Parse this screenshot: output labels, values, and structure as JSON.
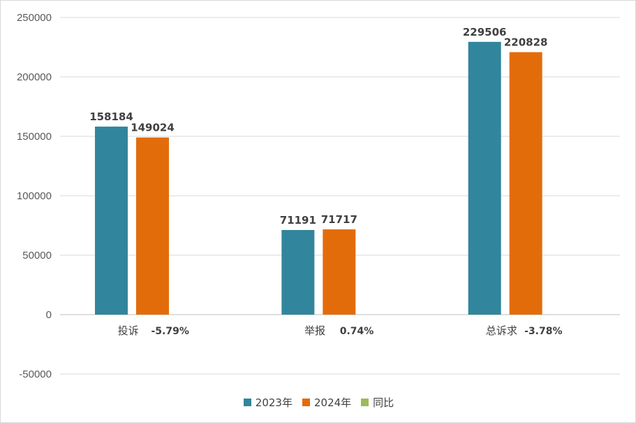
{
  "chart_data": {
    "type": "bar",
    "categories": [
      "投诉",
      "举报",
      "总诉求"
    ],
    "category_changes": [
      "-5.79%",
      "0.74%",
      "-3.78%"
    ],
    "series": [
      {
        "name": "2023年",
        "values": [
          158184,
          71191,
          229506
        ],
        "color": "#31859c"
      },
      {
        "name": "2024年",
        "values": [
          149024,
          71717,
          220828
        ],
        "color": "#e36c0a"
      },
      {
        "name": "同比",
        "values": [
          -0.0579,
          0.0074,
          -0.0378
        ],
        "color": "#9bbb59"
      }
    ],
    "ylim": [
      -50000,
      250000
    ],
    "yticks": [
      "-50000",
      "0",
      "50000",
      "100000",
      "150000",
      "200000",
      "250000"
    ],
    "grid": true,
    "legend_position": "bottom"
  }
}
